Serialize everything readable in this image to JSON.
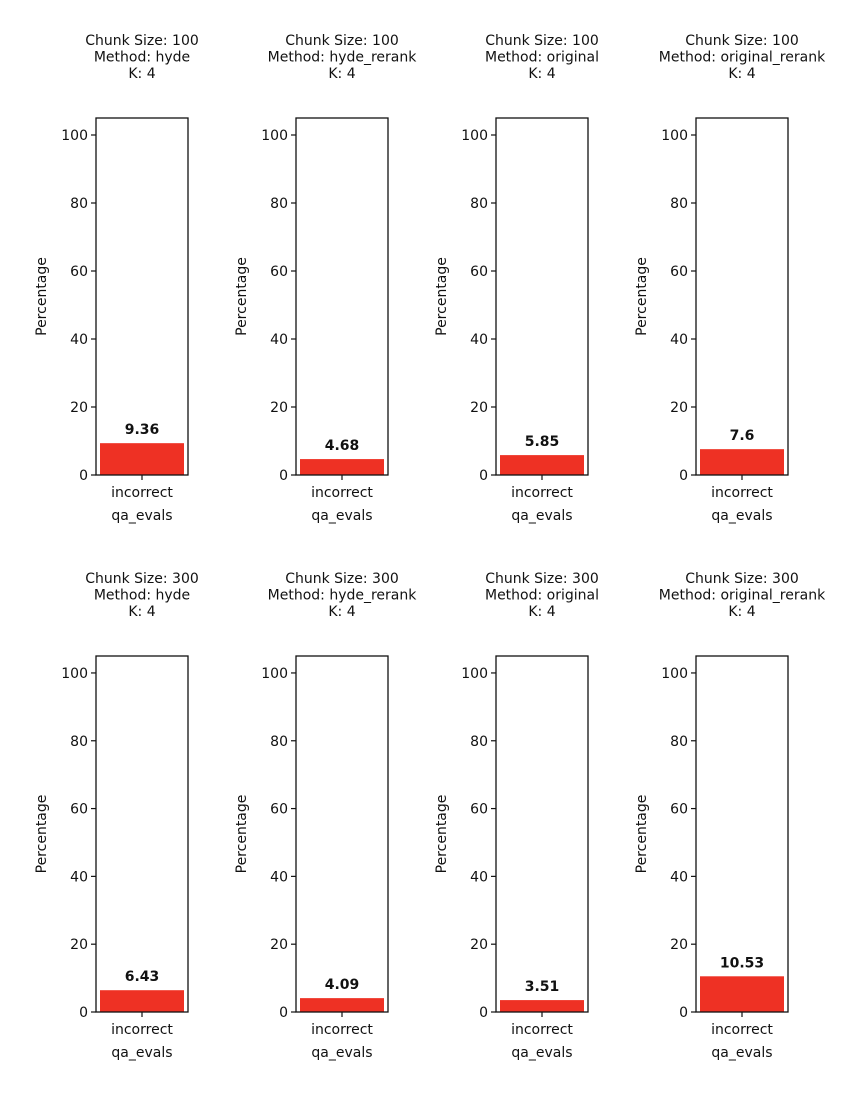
{
  "chart_data": [
    {
      "type": "bar",
      "title": [
        "Chunk Size: 100",
        "Method: hyde",
        "K: 4"
      ],
      "categories": [
        "incorrect\nqa_evals"
      ],
      "values": [
        9.36
      ],
      "ylabel": "Percentage",
      "ylim": [
        0,
        105
      ],
      "yticks": [
        0,
        20,
        40,
        60,
        80,
        100
      ],
      "color": "#ee3124"
    },
    {
      "type": "bar",
      "title": [
        "Chunk Size: 100",
        "Method: hyde_rerank",
        "K: 4"
      ],
      "categories": [
        "incorrect\nqa_evals"
      ],
      "values": [
        4.68
      ],
      "ylabel": "Percentage",
      "ylim": [
        0,
        105
      ],
      "yticks": [
        0,
        20,
        40,
        60,
        80,
        100
      ],
      "color": "#ee3124"
    },
    {
      "type": "bar",
      "title": [
        "Chunk Size: 100",
        "Method: original",
        "K: 4"
      ],
      "categories": [
        "incorrect\nqa_evals"
      ],
      "values": [
        5.85
      ],
      "ylabel": "Percentage",
      "ylim": [
        0,
        105
      ],
      "yticks": [
        0,
        20,
        40,
        60,
        80,
        100
      ],
      "color": "#ee3124"
    },
    {
      "type": "bar",
      "title": [
        "Chunk Size: 100",
        "Method: original_rerank",
        "K: 4"
      ],
      "categories": [
        "incorrect\nqa_evals"
      ],
      "values": [
        7.6
      ],
      "ylabel": "Percentage",
      "ylim": [
        0,
        105
      ],
      "yticks": [
        0,
        20,
        40,
        60,
        80,
        100
      ],
      "color": "#ee3124"
    },
    {
      "type": "bar",
      "title": [
        "Chunk Size: 300",
        "Method: hyde",
        "K: 4"
      ],
      "categories": [
        "incorrect\nqa_evals"
      ],
      "values": [
        6.43
      ],
      "ylabel": "Percentage",
      "ylim": [
        0,
        105
      ],
      "yticks": [
        0,
        20,
        40,
        60,
        80,
        100
      ],
      "color": "#ee3124"
    },
    {
      "type": "bar",
      "title": [
        "Chunk Size: 300",
        "Method: hyde_rerank",
        "K: 4"
      ],
      "categories": [
        "incorrect\nqa_evals"
      ],
      "values": [
        4.09
      ],
      "ylabel": "Percentage",
      "ylim": [
        0,
        105
      ],
      "yticks": [
        0,
        20,
        40,
        60,
        80,
        100
      ],
      "color": "#ee3124"
    },
    {
      "type": "bar",
      "title": [
        "Chunk Size: 300",
        "Method: original",
        "K: 4"
      ],
      "categories": [
        "incorrect\nqa_evals"
      ],
      "values": [
        3.51
      ],
      "ylabel": "Percentage",
      "ylim": [
        0,
        105
      ],
      "yticks": [
        0,
        20,
        40,
        60,
        80,
        100
      ],
      "color": "#ee3124"
    },
    {
      "type": "bar",
      "title": [
        "Chunk Size: 300",
        "Method: original_rerank",
        "K: 4"
      ],
      "categories": [
        "incorrect\nqa_evals"
      ],
      "values": [
        10.53
      ],
      "ylabel": "Percentage",
      "ylim": [
        0,
        105
      ],
      "yticks": [
        0,
        20,
        40,
        60,
        80,
        100
      ],
      "color": "#ee3124"
    }
  ]
}
